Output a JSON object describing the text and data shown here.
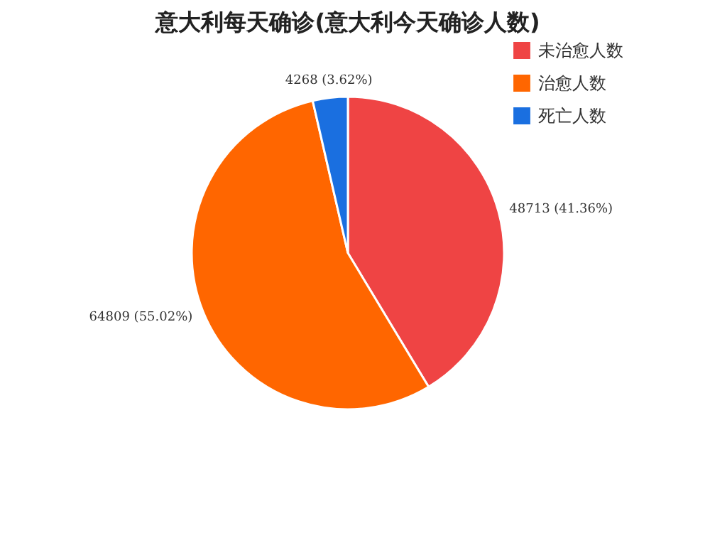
{
  "chart_data": {
    "type": "pie",
    "title": "意大利每天确诊(意大利今天确诊人数)",
    "categories": [
      "未治愈人数",
      "治愈人数",
      "死亡人数"
    ],
    "values": [
      48713,
      64809,
      4268
    ],
    "colors": [
      "#ef4444",
      "#ff6600",
      "#1a6fe0"
    ],
    "value_labels": [
      "48713 (41.36%)",
      "64809 (55.02%)",
      "4268 (3.62%)"
    ],
    "legend": "top right"
  }
}
